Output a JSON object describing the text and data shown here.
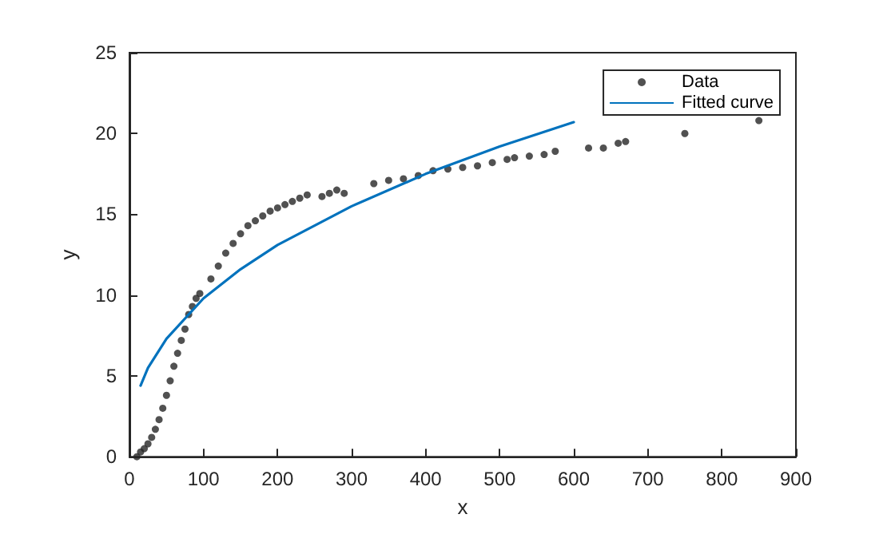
{
  "chart_data": {
    "type": "scatter",
    "xlabel": "x",
    "ylabel": "y",
    "xlim": [
      0,
      900
    ],
    "ylim": [
      0,
      25
    ],
    "xticks": [
      0,
      100,
      200,
      300,
      400,
      500,
      600,
      700,
      800,
      900
    ],
    "yticks": [
      0,
      5,
      10,
      15,
      20,
      25
    ],
    "grid": false,
    "legend": "top right",
    "series": [
      {
        "name": "Data",
        "marker": "circle",
        "color": "#262626",
        "x": [
          10,
          15,
          20,
          25,
          30,
          35,
          40,
          45,
          50,
          55,
          60,
          65,
          70,
          75,
          80,
          85,
          90,
          95,
          110,
          120,
          130,
          140,
          150,
          160,
          170,
          180,
          190,
          200,
          210,
          220,
          230,
          240,
          260,
          270,
          280,
          290,
          330,
          350,
          370,
          390,
          410,
          430,
          450,
          470,
          490,
          510,
          520,
          540,
          560,
          575,
          620,
          640,
          660,
          670,
          750,
          850
        ],
        "values": [
          0,
          0.3,
          0.5,
          0.8,
          1.2,
          1.7,
          2.3,
          3.0,
          3.8,
          4.7,
          5.6,
          6.4,
          7.2,
          7.9,
          8.8,
          9.3,
          9.8,
          10.1,
          11.0,
          11.8,
          12.6,
          13.2,
          13.8,
          14.3,
          14.6,
          14.9,
          15.2,
          15.4,
          15.6,
          15.8,
          16.0,
          16.2,
          16.1,
          16.3,
          16.5,
          16.3,
          16.9,
          17.1,
          17.2,
          17.4,
          17.7,
          17.8,
          17.9,
          18.0,
          18.2,
          18.4,
          18.5,
          18.6,
          18.7,
          18.9,
          19.1,
          19.1,
          19.4,
          19.5,
          20.0,
          20.8
        ]
      },
      {
        "name": "Fitted curve",
        "type": "line",
        "marker": "none",
        "line_style": "solid",
        "color": "#0072bd",
        "x": [
          15,
          25,
          50,
          100,
          150,
          200,
          300,
          400,
          500,
          600
        ],
        "values": [
          4.4,
          5.5,
          7.3,
          9.8,
          11.6,
          13.1,
          15.5,
          17.5,
          19.2,
          20.7
        ]
      }
    ]
  }
}
